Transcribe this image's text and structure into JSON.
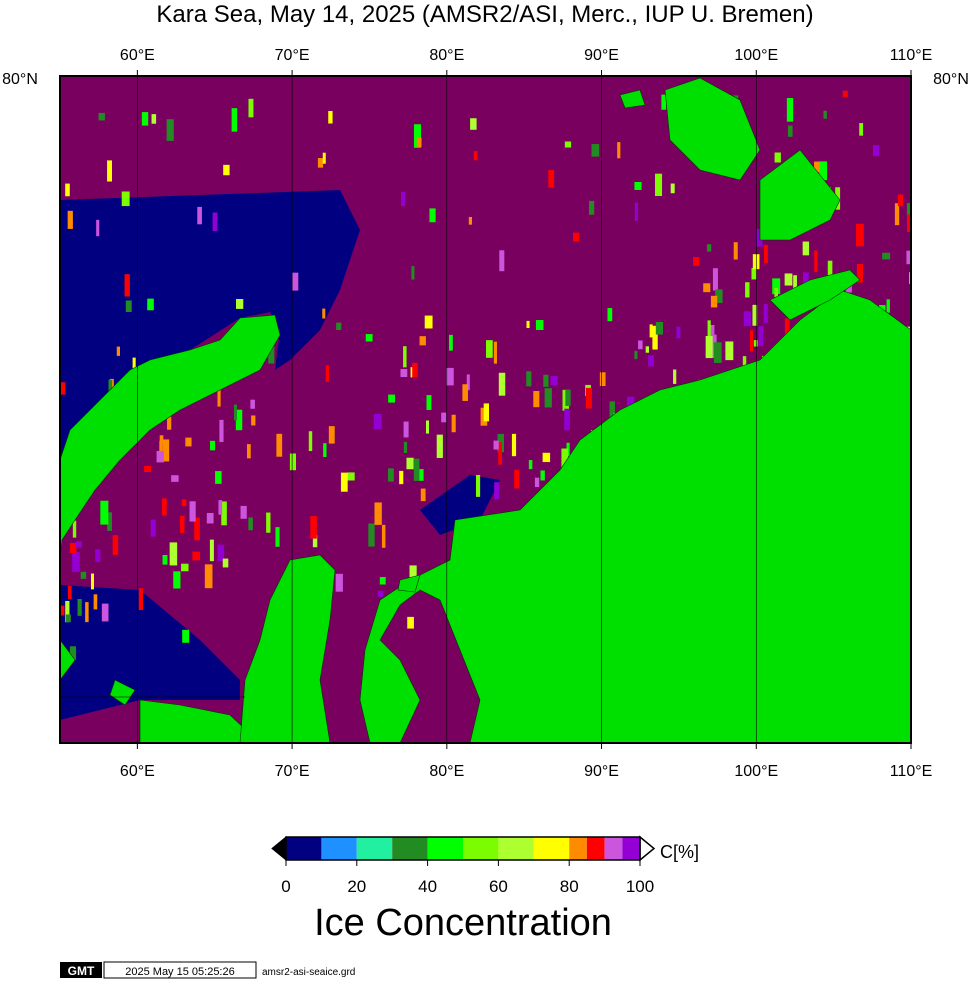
{
  "title": "Kara Sea, May 14, 2025 (AMSR2/ASI, Merc., IUP U. Bremen)",
  "map": {
    "lon_lim": [
      55,
      110
    ],
    "lon_ticks": [
      {
        "value": 60,
        "label": "60°E"
      },
      {
        "value": 70,
        "label": "70°E"
      },
      {
        "value": 80,
        "label": "80°E"
      },
      {
        "value": 90,
        "label": "90°E"
      },
      {
        "value": 100,
        "label": "100°E"
      },
      {
        "value": 110,
        "label": "110°E"
      }
    ],
    "lat_label": "80°N"
  },
  "colorbar": {
    "lim": [
      0,
      100
    ],
    "bounds": [
      0,
      10,
      20,
      30,
      40,
      50,
      60,
      70,
      80,
      85,
      90,
      95,
      100
    ],
    "colors": [
      "#000080",
      "#1e90ff",
      "#20f0a0",
      "#228b22",
      "#00ff00",
      "#7cfc00",
      "#adff2f",
      "#ffff00",
      "#ff8c00",
      "#ff0000",
      "#cc55dd",
      "#9400d3"
    ],
    "ticks": [
      0,
      20,
      40,
      60,
      80,
      100
    ],
    "unit": "C[%]",
    "label": "Ice Concentration"
  },
  "footer": {
    "logo": "GMT",
    "timestamp": "2025 May 15 05:25:26",
    "file": "amsr2-asi-seaice.grd"
  }
}
